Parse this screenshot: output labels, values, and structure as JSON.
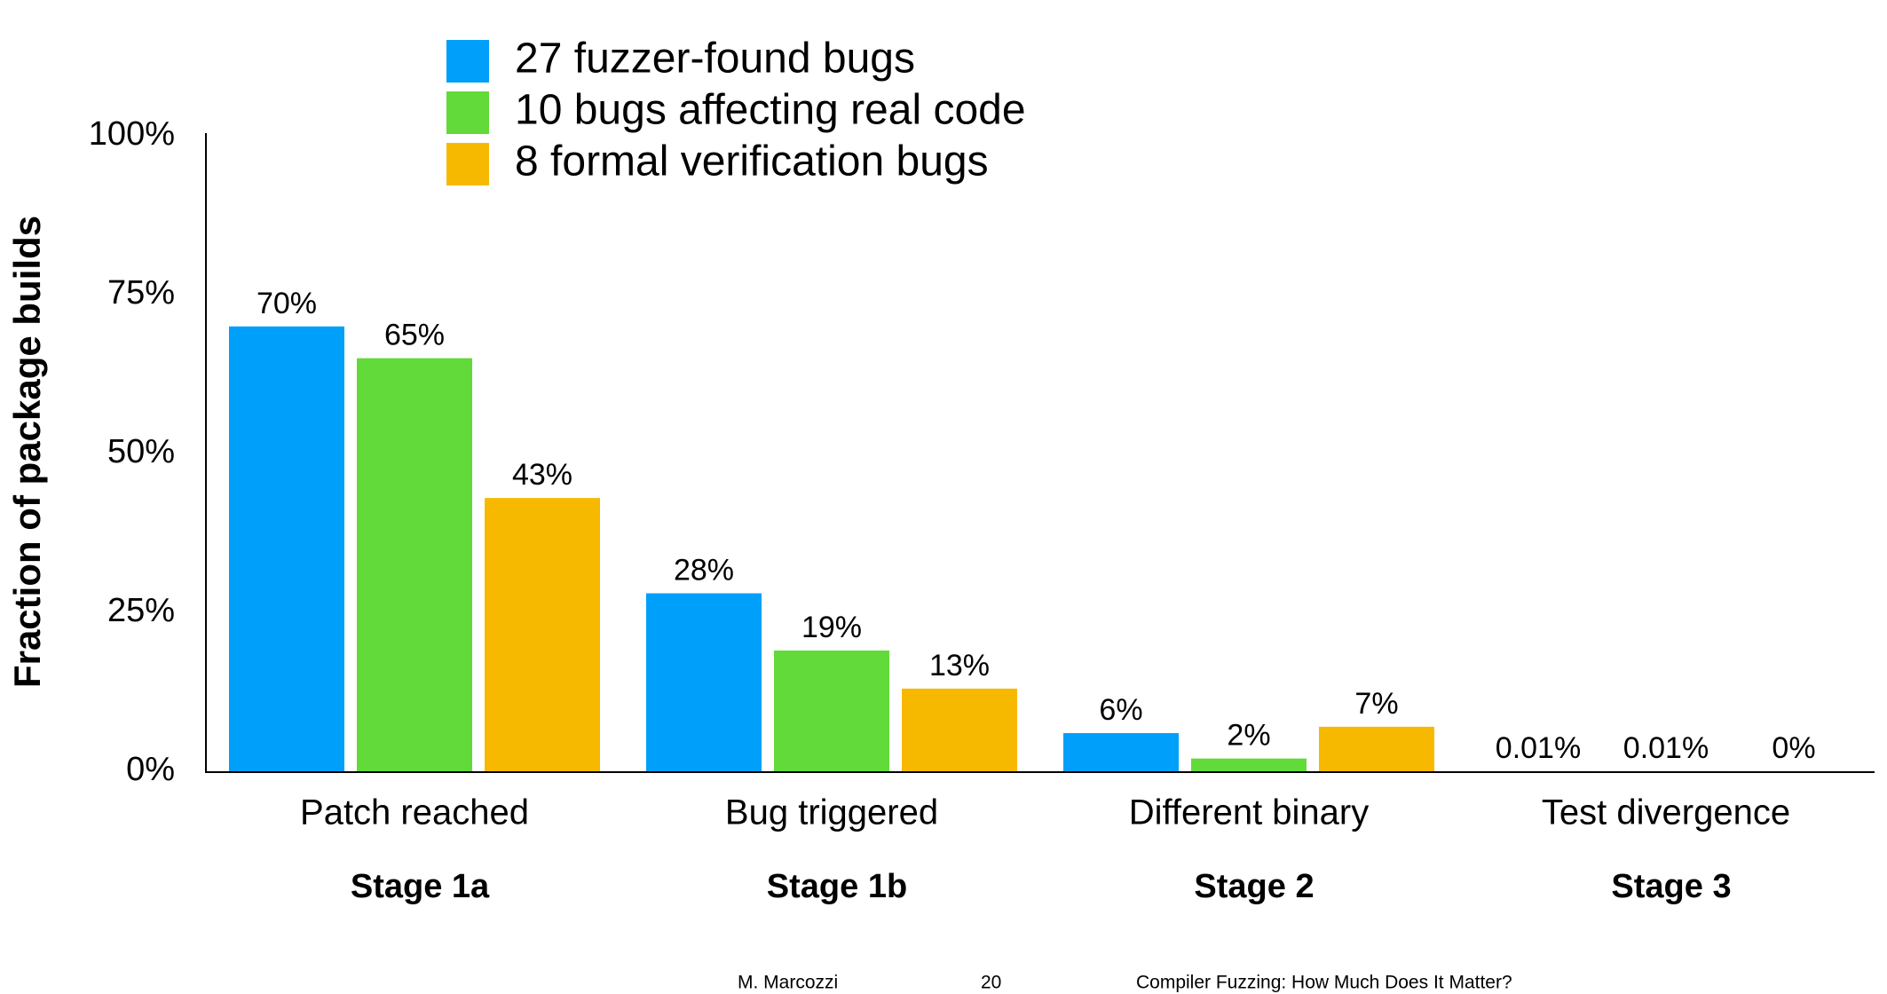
{
  "chart_data": {
    "type": "bar",
    "y_label": "Fraction of package builds",
    "categories": [
      "Patch reached",
      "Bug triggered",
      "Different binary",
      "Test divergence"
    ],
    "stage_labels": [
      "Stage 1a",
      "Stage 1b",
      "Stage 2",
      "Stage 3"
    ],
    "series": [
      {
        "name": "27 fuzzer-found bugs",
        "color": "#00a0fa",
        "values": [
          70,
          28,
          6,
          0.01
        ],
        "value_labels": [
          "70%",
          "28%",
          "6%",
          "0.01%"
        ]
      },
      {
        "name": "10 bugs affecting real code",
        "color": "#62da39",
        "values": [
          65,
          19,
          2,
          0.01
        ],
        "value_labels": [
          "65%",
          "19%",
          "2%",
          "0.01%"
        ]
      },
      {
        "name": "8 formal verification bugs",
        "color": "#f7b900",
        "values": [
          43,
          13,
          7,
          0
        ],
        "value_labels": [
          "43%",
          "13%",
          "7%",
          "0%"
        ]
      }
    ],
    "ylim": [
      0,
      100
    ],
    "yticks": [
      {
        "value": 0,
        "label": "0%"
      },
      {
        "value": 25,
        "label": "25%"
      },
      {
        "value": 50,
        "label": "50%"
      },
      {
        "value": 75,
        "label": "75%"
      },
      {
        "value": 100,
        "label": "100%"
      }
    ],
    "grid": false,
    "legend": "top"
  },
  "footer": {
    "author": "M. Marcozzi",
    "page": "20",
    "title": "Compiler Fuzzing: How Much Does It Matter?"
  }
}
